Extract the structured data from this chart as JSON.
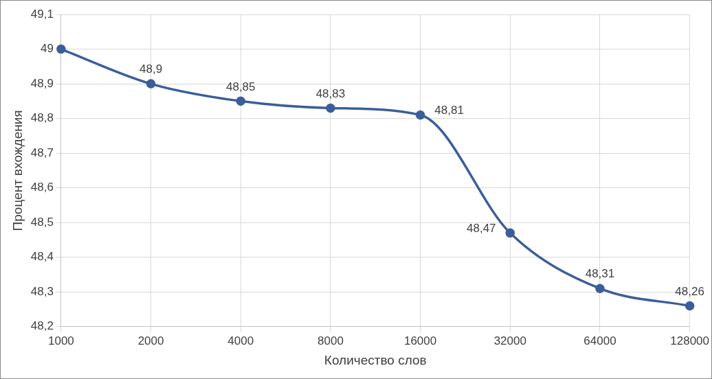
{
  "chart_data": {
    "type": "line",
    "xlabel": "Количество слов",
    "ylabel": "Процент вхождения",
    "categories": [
      "1000",
      "2000",
      "4000",
      "8000",
      "16000",
      "32000",
      "64000",
      "128000"
    ],
    "values": [
      49,
      48.9,
      48.85,
      48.83,
      48.81,
      48.47,
      48.31,
      48.26
    ],
    "value_labels": [
      null,
      "48,9",
      "48,85",
      "48,83",
      "48,81",
      "48,47",
      "48,31",
      "48,26"
    ],
    "color": "#3b5e9a",
    "marker": "circle",
    "line_style": "solid",
    "ylim": [
      48.2,
      49.1
    ],
    "yticks": [
      {
        "value": 48.2,
        "label": "48,2"
      },
      {
        "value": 48.3,
        "label": "48,3"
      },
      {
        "value": 48.4,
        "label": "48,4"
      },
      {
        "value": 48.5,
        "label": "48,5"
      },
      {
        "value": 48.6,
        "label": "48,6"
      },
      {
        "value": 48.7,
        "label": "48,7"
      },
      {
        "value": 48.8,
        "label": "48,8"
      },
      {
        "value": 48.9,
        "label": "48,9"
      },
      {
        "value": 49,
        "label": "49"
      },
      {
        "value": 49.1,
        "label": "49,1"
      }
    ],
    "grid": true,
    "legend": false
  }
}
